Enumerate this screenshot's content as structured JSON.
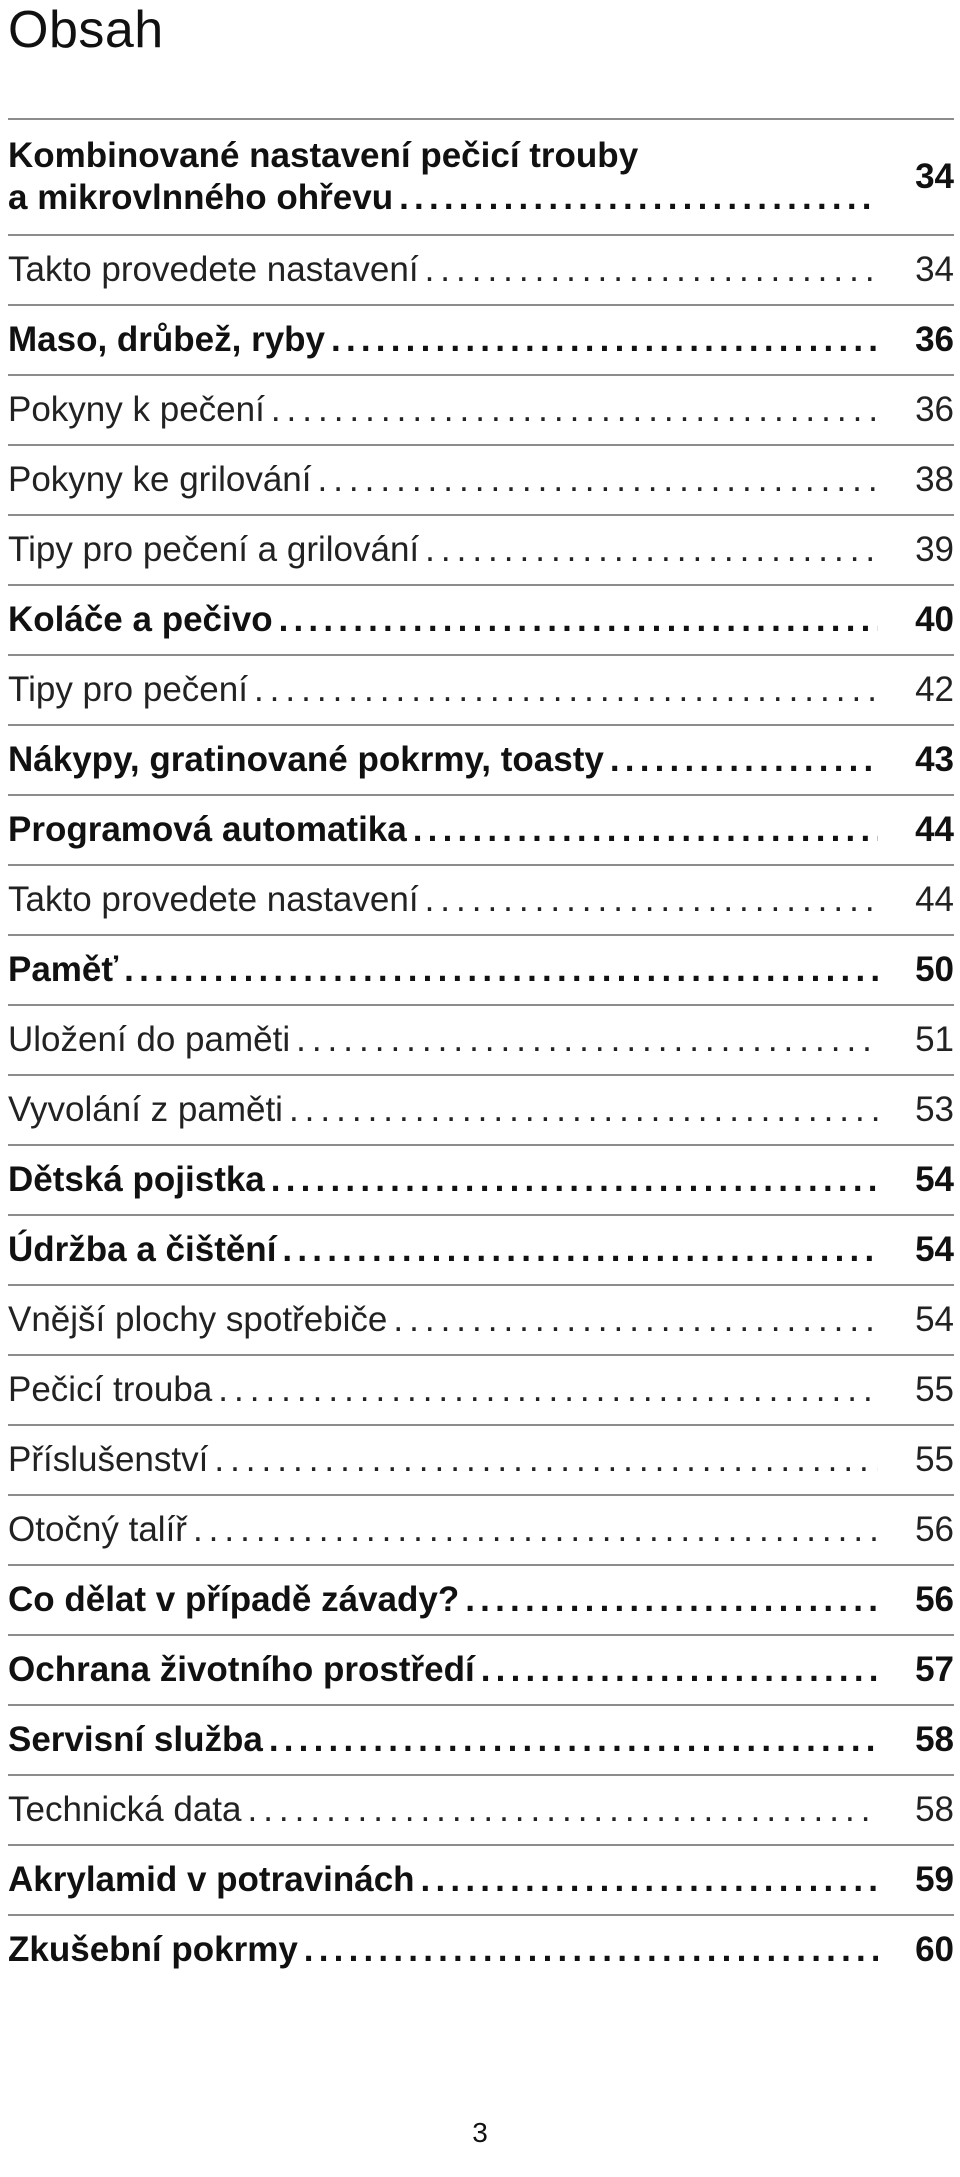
{
  "title": "Obsah",
  "entries": [
    {
      "label_line1": "Kombinované nastavení pečicí trouby",
      "label": "a mikrovlnného ohřevu",
      "page": "34",
      "bold": true
    },
    {
      "label": "Takto provedete nastavení",
      "page": "34",
      "bold": false
    },
    {
      "label": "Maso, drůbež, ryby",
      "page": "36",
      "bold": true
    },
    {
      "label": "Pokyny k pečení",
      "page": "36",
      "bold": false
    },
    {
      "label": "Pokyny ke grilování",
      "page": "38",
      "bold": false
    },
    {
      "label": "Tipy pro pečení a grilování",
      "page": "39",
      "bold": false
    },
    {
      "label": "Koláče a pečivo",
      "page": "40",
      "bold": true
    },
    {
      "label": "Tipy pro pečení",
      "page": "42",
      "bold": false
    },
    {
      "label": "Nákypy, gratinované pokrmy, toasty",
      "page": "43",
      "bold": true
    },
    {
      "label": "Programová automatika",
      "page": "44",
      "bold": true
    },
    {
      "label": "Takto provedete nastavení",
      "page": "44",
      "bold": false
    },
    {
      "label": "Paměť",
      "page": "50",
      "bold": true
    },
    {
      "label": "Uložení do paměti",
      "page": "51",
      "bold": false
    },
    {
      "label": "Vyvolání z paměti",
      "page": "53",
      "bold": false
    },
    {
      "label": "Dětská pojistka",
      "page": "54",
      "bold": true
    },
    {
      "label": "Údržba a čištění",
      "page": "54",
      "bold": true
    },
    {
      "label": "Vnější plochy spotřebiče",
      "page": "54",
      "bold": false
    },
    {
      "label": "Pečicí trouba",
      "page": "55",
      "bold": false
    },
    {
      "label": "Příslušenství",
      "page": "55",
      "bold": false
    },
    {
      "label": "Otočný talíř",
      "page": "56",
      "bold": false
    },
    {
      "label": "Co dělat v případě závady?",
      "page": "56",
      "bold": true
    },
    {
      "label": "Ochrana životního prostředí",
      "page": "57",
      "bold": true
    },
    {
      "label": "Servisní služba",
      "page": "58",
      "bold": true
    },
    {
      "label": "Technická data",
      "page": "58",
      "bold": false
    },
    {
      "label": "Akrylamid v potravinách",
      "page": "59",
      "bold": true
    },
    {
      "label": "Zkušební pokrmy",
      "page": "60",
      "bold": true
    }
  ],
  "page_number": "3",
  "colors": {
    "text": "#111111",
    "rule": "#8c8c8c",
    "background": "#ffffff"
  }
}
